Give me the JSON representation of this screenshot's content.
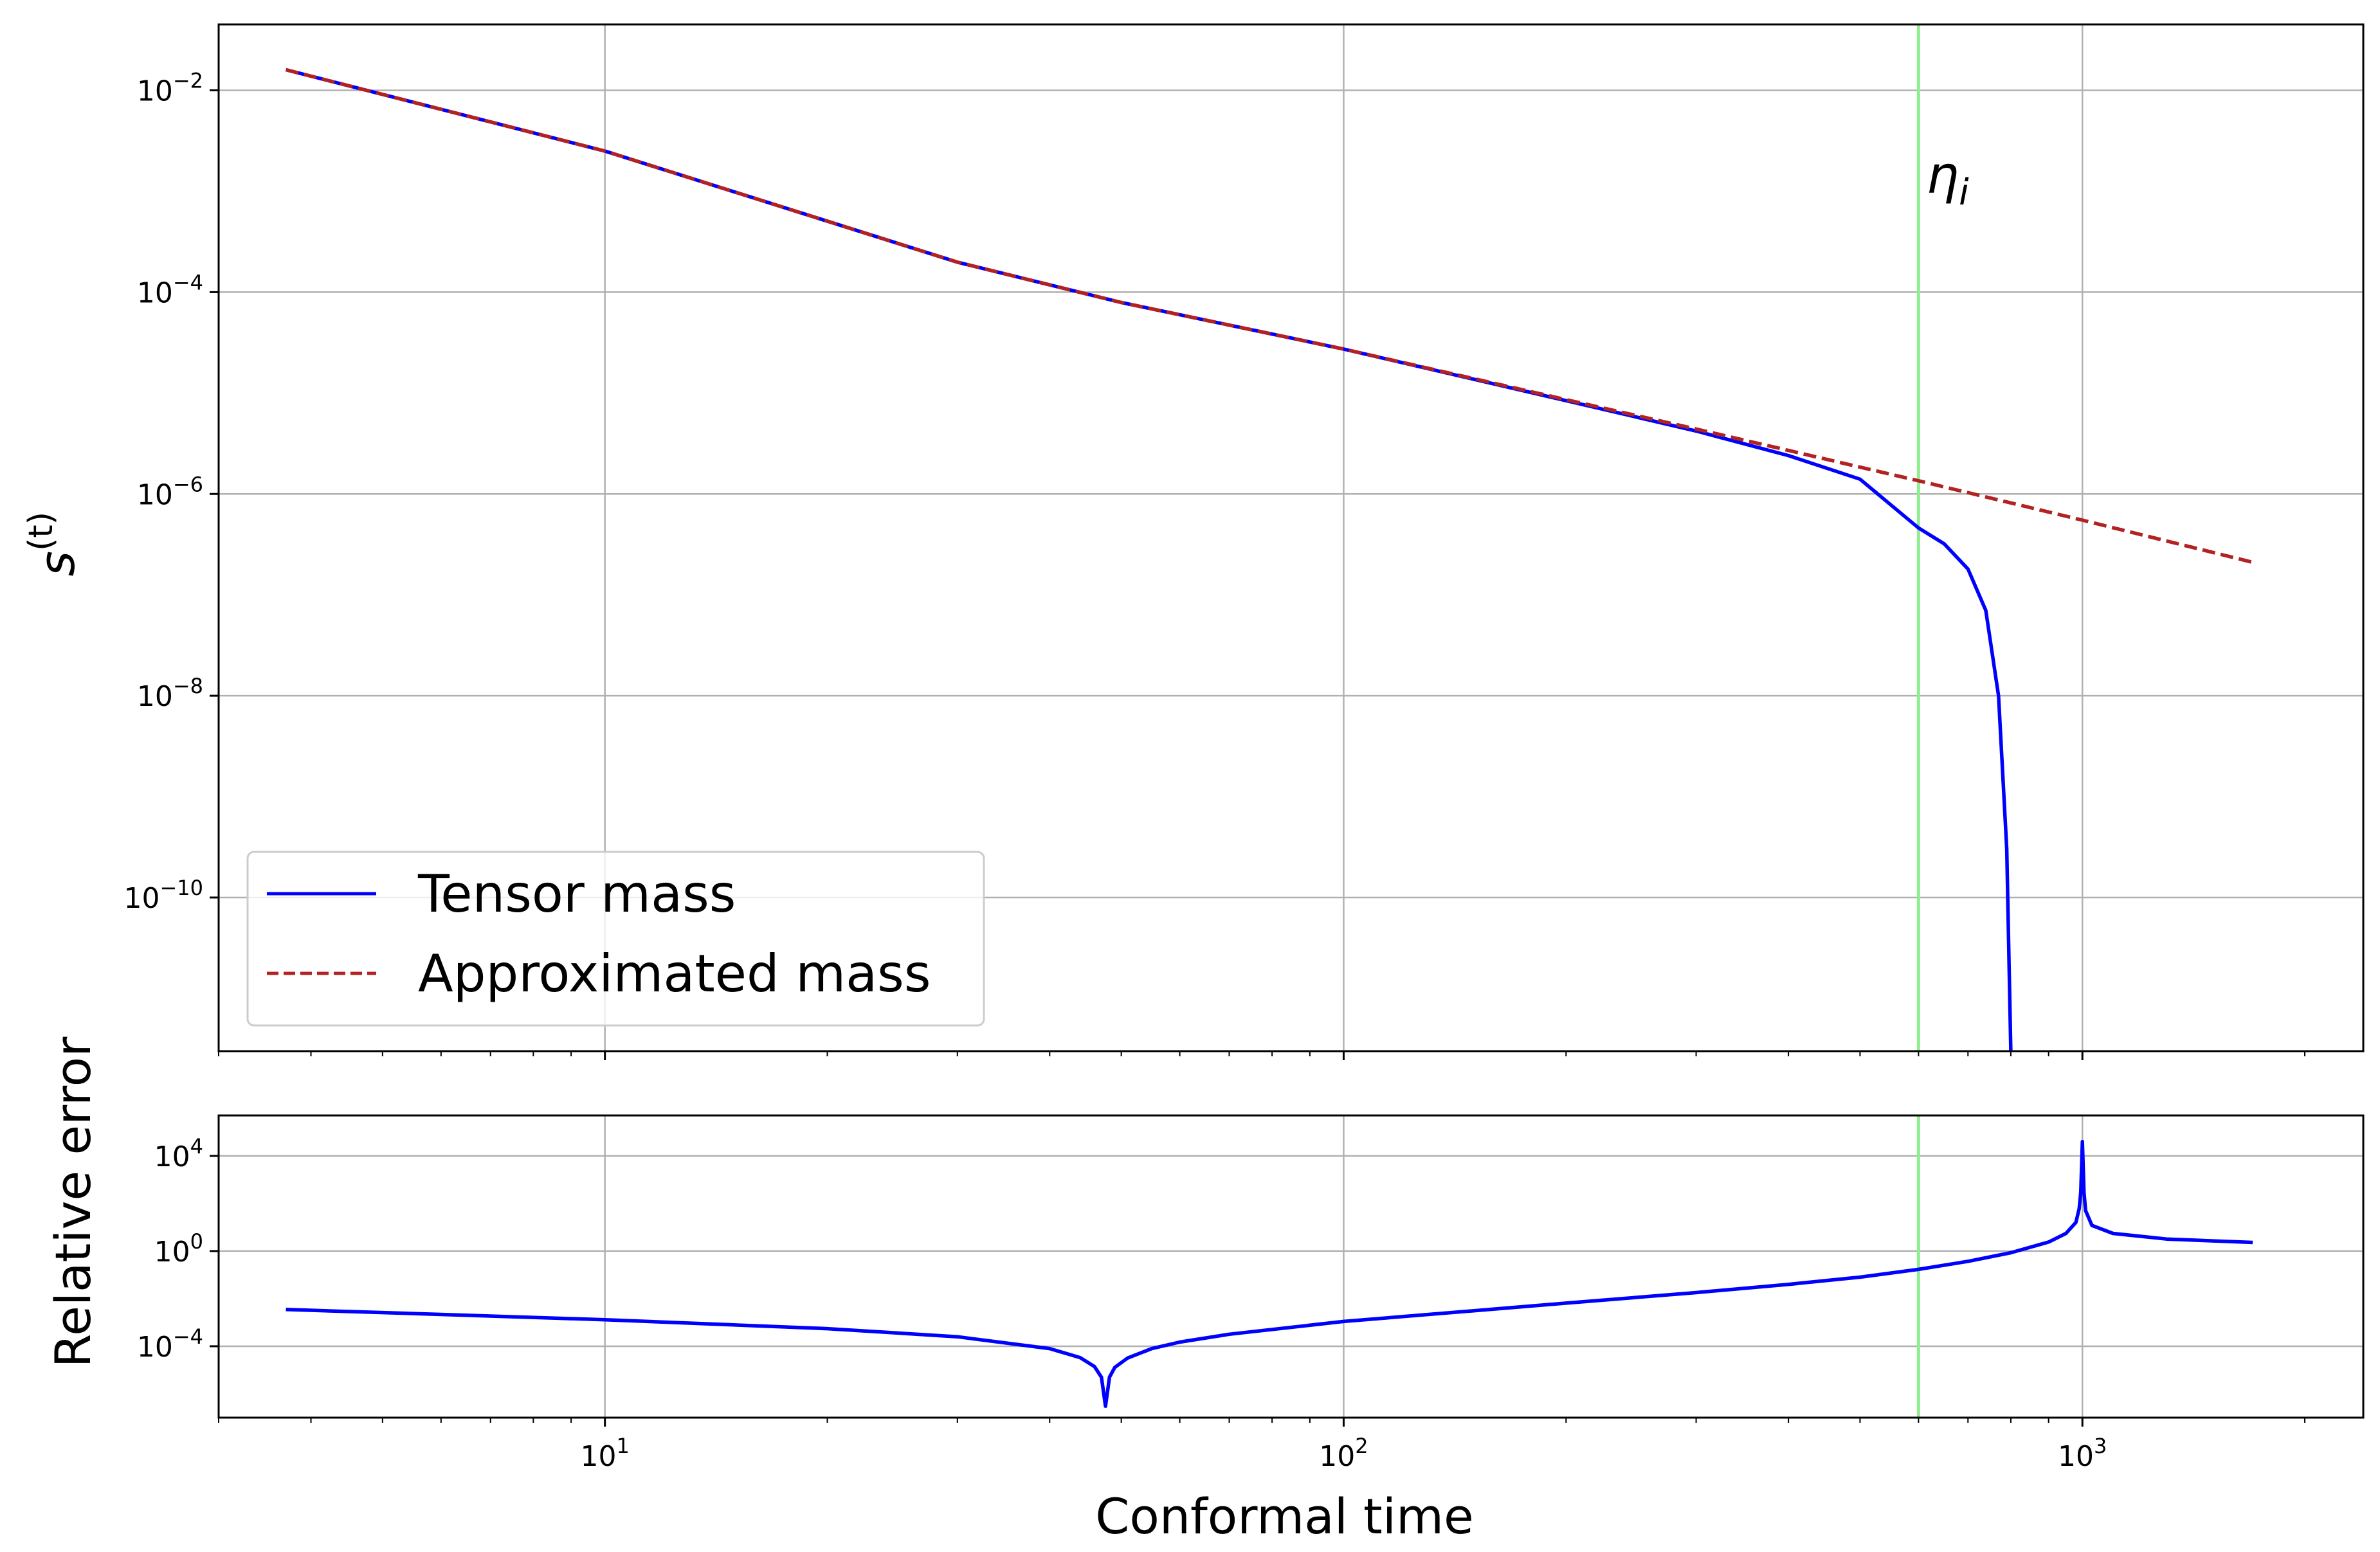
{
  "chart_data": [
    {
      "type": "line",
      "xscale": "log",
      "yscale": "log",
      "xlim": [
        3,
        2400
      ],
      "ylim": [
        3e-12,
        0.045
      ],
      "grid": true,
      "ylabel_base": "s",
      "ylabel_sup": "(t)",
      "xlabel": "",
      "x_ticks": [
        {
          "value": 10,
          "base": "10",
          "exp": "1"
        },
        {
          "value": 100,
          "base": "10",
          "exp": "2"
        },
        {
          "value": 1000,
          "base": "10",
          "exp": "3"
        }
      ],
      "y_ticks": [
        {
          "value": 0.01,
          "base": "10",
          "exp": "−2"
        },
        {
          "value": 0.0001,
          "base": "10",
          "exp": "−4"
        },
        {
          "value": 1e-06,
          "base": "10",
          "exp": "−6"
        },
        {
          "value": 1e-08,
          "base": "10",
          "exp": "−8"
        },
        {
          "value": 1e-10,
          "base": "10",
          "exp": "−10"
        }
      ],
      "legend_position": "lower-left",
      "vline": {
        "x": 600,
        "label": "η",
        "label_sub": "i",
        "color": "#90ee90"
      },
      "series": [
        {
          "name": "Tensor mass",
          "color": "#0000ff",
          "style": "solid",
          "x": [
            3.7,
            10,
            30,
            50,
            100,
            200,
            300,
            400,
            500,
            600,
            650,
            700,
            740,
            770,
            790,
            800
          ],
          "y": [
            0.016,
            0.0025,
            0.000198,
            7.9e-05,
            2.73e-05,
            8.4e-06,
            4.2e-06,
            2.4e-06,
            1.4e-06,
            4.6e-07,
            3.2e-07,
            1.8e-07,
            7e-08,
            1e-08,
            3e-10,
            3e-12
          ]
        },
        {
          "name": "Approximated mass",
          "color": "#b22222",
          "style": "dashed",
          "x": [
            3.7,
            10,
            30,
            50,
            100,
            200,
            300,
            400,
            600,
            1000,
            1700
          ],
          "y": [
            0.016,
            0.0025,
            0.000198,
            7.9e-05,
            2.73e-05,
            8.6e-06,
            4.4e-06,
            2.7e-06,
            1.35e-06,
            5.5e-07,
            2.1e-07
          ]
        }
      ]
    },
    {
      "type": "line",
      "xscale": "log",
      "yscale": "log",
      "xlim": [
        3,
        2400
      ],
      "ylim": [
        1e-07,
        500000.0
      ],
      "grid": true,
      "ylabel": "Relative error",
      "xlabel": "Conformal time",
      "x_ticks": [
        {
          "value": 10,
          "base": "10",
          "exp": "1"
        },
        {
          "value": 100,
          "base": "10",
          "exp": "2"
        },
        {
          "value": 1000,
          "base": "10",
          "exp": "3"
        }
      ],
      "y_ticks": [
        {
          "value": 10000,
          "base": "10",
          "exp": "4"
        },
        {
          "value": 1,
          "base": "10",
          "exp": "0"
        },
        {
          "value": 0.0001,
          "base": "10",
          "exp": "−4"
        }
      ],
      "vline": {
        "x": 600,
        "color": "#90ee90"
      },
      "series": [
        {
          "name": "Tensor mass",
          "color": "#0000ff",
          "style": "solid",
          "x": [
            3.7,
            10,
            20,
            30,
            40,
            44,
            46,
            47,
            47.6,
            48.2,
            49,
            51,
            55,
            60,
            70,
            100,
            200,
            300,
            400,
            500,
            600,
            700,
            800,
            900,
            950,
            980,
            990,
            995,
            1000,
            1005,
            1010,
            1030,
            1100,
            1300,
            1700
          ],
          "y": [
            0.0035,
            0.0013,
            0.00055,
            0.00025,
            8e-05,
            3.3e-05,
            1.4e-05,
            5e-06,
            3e-07,
            5e-06,
            1.3e-05,
            3.2e-05,
            8e-05,
            0.00015,
            0.00032,
            0.0011,
            0.0065,
            0.018,
            0.04,
            0.08,
            0.17,
            0.37,
            0.85,
            2.4,
            5.5,
            16,
            60,
            300,
            40000,
            300,
            50,
            12,
            5.5,
            3.2,
            2.3
          ]
        }
      ]
    }
  ]
}
